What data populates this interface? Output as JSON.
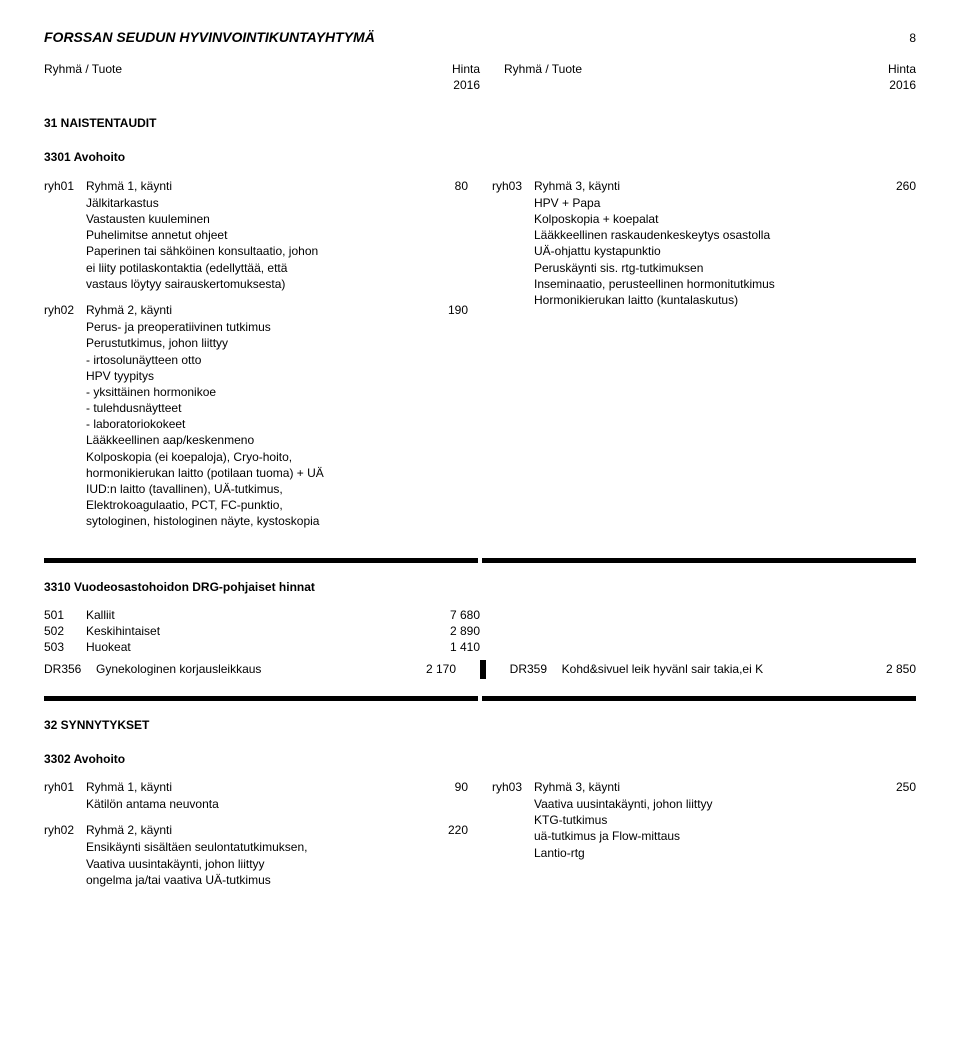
{
  "header": {
    "org": "FORSSAN SEUDUN HYVINVOINTIKUNTAYHTYMÄ",
    "page": "8",
    "col_label": "Ryhmä / Tuote",
    "price_label": "Hinta",
    "year_label": "2016"
  },
  "s1": {
    "title": "31 NAISTENTAUDIT",
    "sub": "3301 Avohoito",
    "left": [
      {
        "code": "ryh01",
        "title": "Ryhmä 1, käynti",
        "price": "80",
        "desc": "Jälkitarkastus\nVastausten kuuleminen\nPuhelimitse annetut ohjeet\nPaperinen tai sähköinen konsultaatio, johon\nei liity potilaskontaktia (edellyttää, että\nvastaus löytyy sairauskertomuksesta)"
      },
      {
        "code": "ryh02",
        "title": "Ryhmä 2, käynti",
        "price": "190",
        "desc": "Perus- ja preoperatiivinen tutkimus\nPerustutkimus, johon liittyy\n- irtosolunäytteen otto\nHPV tyypitys\n- yksittäinen hormonikoe\n- tulehdusnäytteet\n- laboratoriokokeet\nLääkkeellinen aap/keskenmeno\nKolposkopia (ei koepaloja), Cryo-hoito,\nhormonikierukan laitto (potilaan tuoma) + UÄ\nIUD:n laitto (tavallinen), UÄ-tutkimus,\nElektrokoagulaatio, PCT, FC-punktio,\nsytologinen, histologinen näyte, kystoskopia"
      }
    ],
    "right": [
      {
        "code": "ryh03",
        "title": "Ryhmä 3, käynti",
        "price": "260",
        "desc": "HPV + Papa\nKolposkopia + koepalat\nLääkkeellinen raskaudenkeskeytys osastolla\nUÄ-ohjattu kystapunktio\nPeruskäynti sis. rtg-tutkimuksen\nInseminaatio, perusteellinen hormonitutkimus\nHormonikierukan laitto (kuntalaskutus)"
      }
    ]
  },
  "drg1": {
    "title": "3310 Vuodeosastohoidon DRG-pohjaiset hinnat",
    "rows": [
      {
        "code": "501",
        "label": "Kalliit",
        "price": "7 680"
      },
      {
        "code": "502",
        "label": "Keskihintaiset",
        "price": "2 890"
      },
      {
        "code": "503",
        "label": "Huokeat",
        "price": "1 410"
      }
    ],
    "dr_left": {
      "code": "DR356",
      "label": "Gynekologinen korjausleikkaus",
      "price": "2 170"
    },
    "dr_right": {
      "code": "DR359",
      "label": "Kohd&sivuel leik hyvänl sair takia,ei K",
      "price": "2 850"
    }
  },
  "s2": {
    "title": "32 SYNNYTYKSET",
    "sub": "3302 Avohoito",
    "left": [
      {
        "code": "ryh01",
        "title": "Ryhmä 1, käynti",
        "price": "90",
        "desc": "Kätilön antama neuvonta"
      },
      {
        "code": "ryh02",
        "title": "Ryhmä 2, käynti",
        "price": "220",
        "desc": "Ensikäynti sisältäen seulontatutkimuksen,\nVaativa uusintakäynti, johon liittyy\nongelma ja/tai vaativa UÄ-tutkimus"
      }
    ],
    "right": [
      {
        "code": "ryh03",
        "title": "Ryhmä 3, käynti",
        "price": "250",
        "desc": "Vaativa uusintakäynti, johon liittyy\nKTG-tutkimus\nuä-tutkimus ja Flow-mittaus\nLantio-rtg"
      }
    ]
  }
}
